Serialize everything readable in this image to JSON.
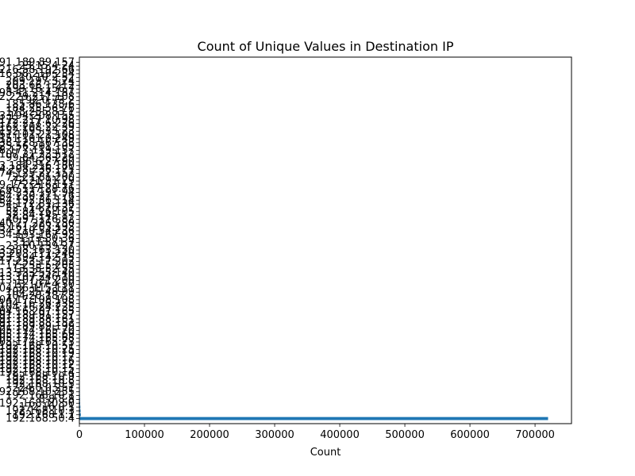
{
  "chart_data": {
    "type": "bar",
    "orientation": "horizontal",
    "title": "Count of Unique Values in  Destination IP",
    "xlabel": "Count",
    "ylabel": "",
    "xlim": [
      0,
      756000
    ],
    "xticks": [
      0,
      100000,
      200000,
      300000,
      400000,
      500000,
      600000,
      700000
    ],
    "grid": false,
    "legend": "none",
    "bar_color": "#1f77b4",
    "categories": [
      "192.168.50.4",
      "192.168.1.1",
      "192.168.10.3",
      "172.16.0.1",
      "192.168.10.50",
      "8.8.8.8",
      "192.168.10.1",
      "192.168.10.255",
      "224.0.0.251",
      "192.168.10.5",
      "192.168.10.8",
      "192.168.10.9",
      "192.168.10.14",
      "192.168.10.15",
      "192.168.10.12",
      "192.168.10.16",
      "192.168.10.17",
      "192.168.10.19",
      "192.168.10.25",
      "192.168.10.51",
      "205.174.165.73",
      "205.174.165.68",
      "205.174.165.69",
      "205.174.165.70",
      "91.189.89.199",
      "91.189.88.152",
      "91.189.88.161",
      "91.189.91.157",
      "104.16.207.165",
      "104.16.24.235",
      "104.16.26.235",
      "104.17.108.108",
      "104.20.187.5",
      "104.25.48.99",
      "104.36.115.111",
      "13.107.4.50",
      "13.107.21.200",
      "13.107.246.10",
      "13.33.255.140",
      "13.35.52.55",
      "17.253.5.203",
      "17.253.17.202",
      "23.194.142.15",
      "23.203.111.240",
      "23.208.163.130",
      "23.60.139.27",
      "31.13.71.7",
      "31.13.80.36",
      "34.193.167.93",
      "34.210.54.236",
      "35.161.203.193",
      "40.77.226.250",
      "40.97.116.82",
      "52.84.145.17",
      "52.84.26.105",
      "52.114.76.37",
      "54.172.81.136",
      "54.192.36.114",
      "54.230.211.76",
      "64.233.191.94",
      "66.117.28.76",
      "69.172.216.111",
      "72.21.91.29",
      "72.21.81.200",
      "74.125.22.157",
      "74.208.236.171",
      "93.184.216.180",
      "96.6.27.90",
      "99.84.36.229",
      "107.21.233.12",
      "108.177.119.157",
      "125.56.201.105",
      "138.128.167.38",
      "151.101.0.249",
      "151.101.21.108",
      "152.195.33.23",
      "162.208.22.39",
      "172.217.6.226",
      "172.217.10.98",
      "173.194.208.155",
      "178.255.83.1",
      "184.25.56.76",
      "185.86.138.6",
      "192.0.73.2",
      "192.229.211.108",
      "198.41.214.187",
      "199.16.156.7",
      "203.66.1.212",
      "209.197.3.24",
      "210.10.2.52",
      "216.58.219.234",
      "216.58.192.66",
      "23.15.4.24",
      "91.189.89.157"
    ],
    "values": [
      720000,
      2200,
      1800,
      1500,
      1200,
      1100,
      900,
      800,
      700,
      650,
      600,
      550,
      500,
      480,
      460,
      440,
      420,
      400,
      380,
      360,
      340,
      320,
      300,
      290,
      280,
      270,
      260,
      250,
      240,
      230,
      220,
      210,
      200,
      190,
      180,
      170,
      160,
      150,
      145,
      140,
      135,
      130,
      125,
      120,
      115,
      110,
      105,
      100,
      95,
      90,
      85,
      80,
      75,
      70,
      65,
      60,
      58,
      56,
      54,
      52,
      50,
      48,
      46,
      44,
      42,
      40,
      38,
      36,
      34,
      32,
      30,
      28,
      26,
      24,
      22,
      20,
      18,
      16,
      14,
      12,
      11,
      10,
      9,
      8,
      7,
      6,
      5,
      4,
      4,
      3,
      3,
      2,
      2,
      1
    ]
  }
}
